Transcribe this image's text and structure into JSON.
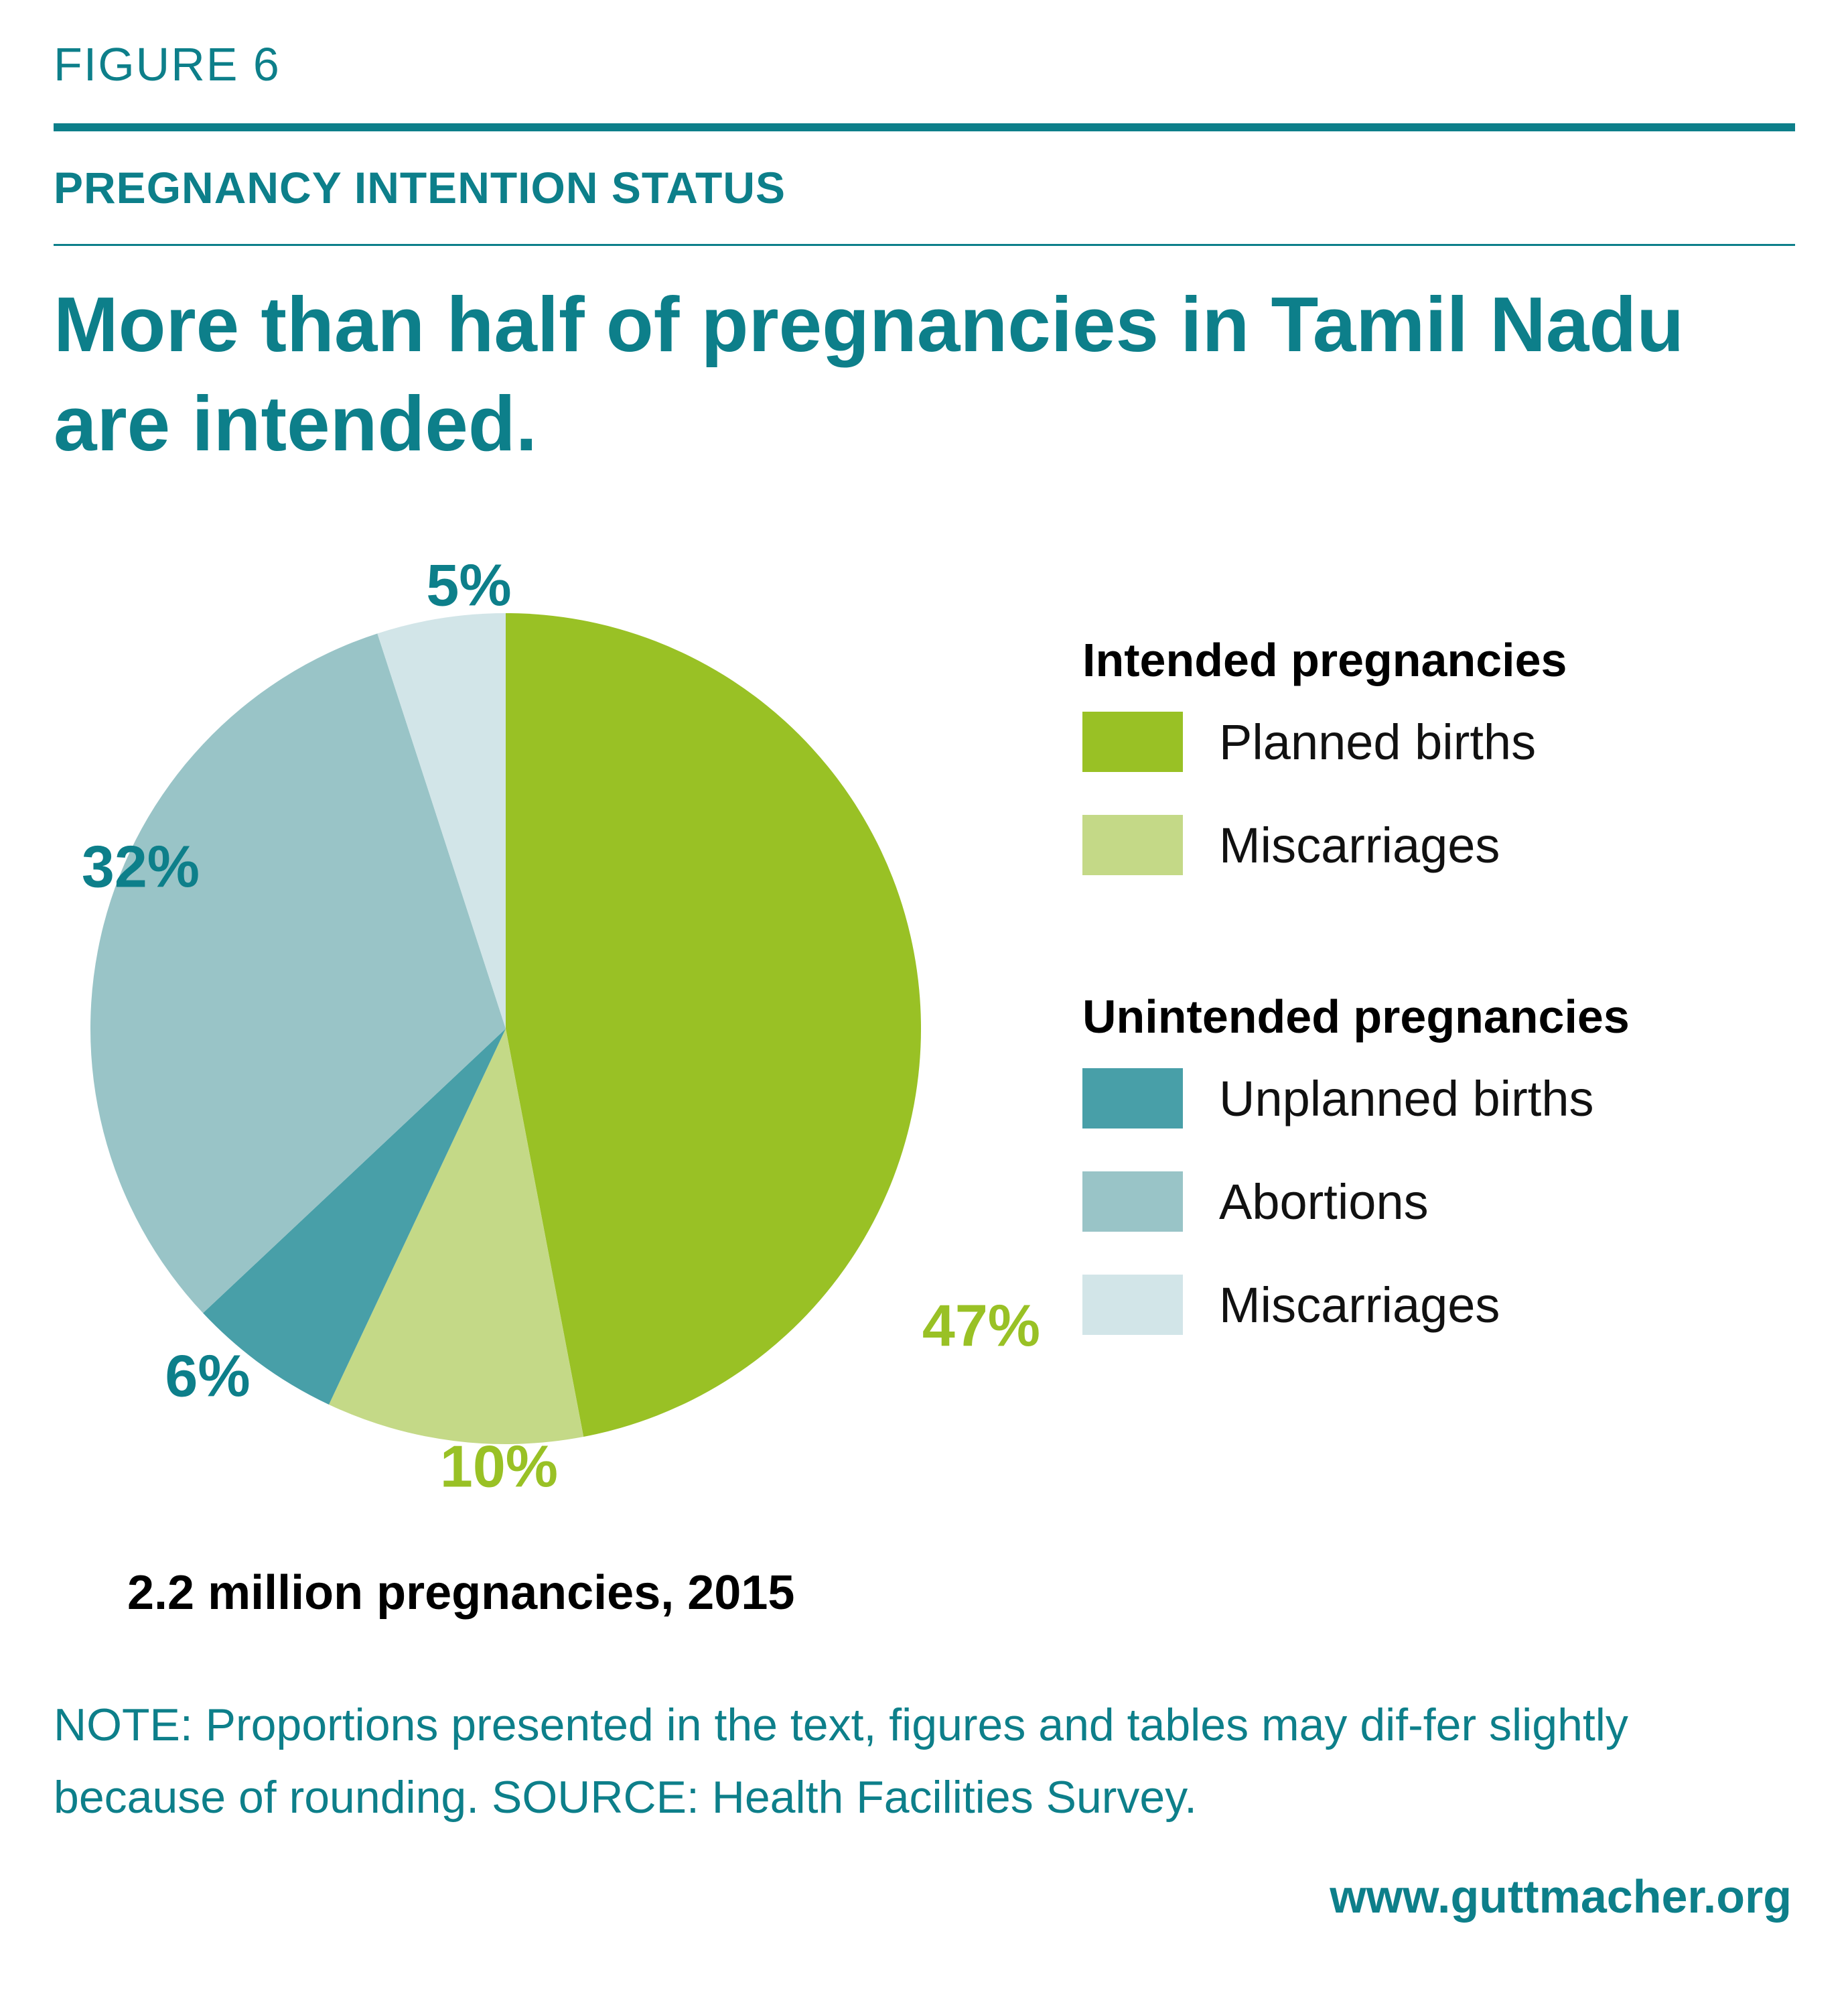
{
  "header": {
    "figure_label": "FIGURE 6",
    "section_title": "PREGNANCY INTENTION STATUS",
    "headline": "More than half of pregnancies in Tamil Nadu are intended."
  },
  "colors": {
    "teal": "#0d7f8a",
    "planned_births": "#99c125",
    "intended_miscarriages": "#c4d987",
    "unplanned_births": "#489fa8",
    "abortions": "#99c4c7",
    "unintended_miscarriages": "#d2e5e8"
  },
  "chart_data": {
    "type": "pie",
    "slices": [
      {
        "legend": "planned_births",
        "value": 47,
        "label": "47%",
        "color": "#99c125",
        "label_color": "#99c125"
      },
      {
        "legend": "intended_miscarriages",
        "value": 10,
        "label": "10%",
        "color": "#c4d987",
        "label_color": "#99c125"
      },
      {
        "legend": "unplanned_births",
        "value": 6,
        "label": "6%",
        "color": "#489fa8",
        "label_color": "#0d7f8a"
      },
      {
        "legend": "abortions",
        "value": 32,
        "label": "32%",
        "color": "#99c4c7",
        "label_color": "#0d7f8a"
      },
      {
        "legend": "unintended_miscarriages",
        "value": 5,
        "label": "5%",
        "color": "#d2e5e8",
        "label_color": "#0d7f8a"
      }
    ],
    "start": "12 o'clock",
    "direction": "clockwise"
  },
  "legend": {
    "groups": [
      {
        "title": "Intended pregnancies",
        "items": [
          {
            "label": "Planned births",
            "color": "#99c125"
          },
          {
            "label": "Miscarriages",
            "color": "#c4d987"
          }
        ]
      },
      {
        "title": "Unintended pregnancies",
        "items": [
          {
            "label": "Unplanned births",
            "color": "#489fa8"
          },
          {
            "label": "Abortions",
            "color": "#99c4c7"
          },
          {
            "label": "Miscarriages",
            "color": "#d2e5e8"
          }
        ]
      }
    ]
  },
  "total_label": "2.2 million pregnancies, 2015",
  "note": "NOTE: Proportions presented in the text, figures and tables may dif-fer slightly because of rounding. SOURCE: Health Facilities Survey.",
  "url": "www.guttmacher.org"
}
